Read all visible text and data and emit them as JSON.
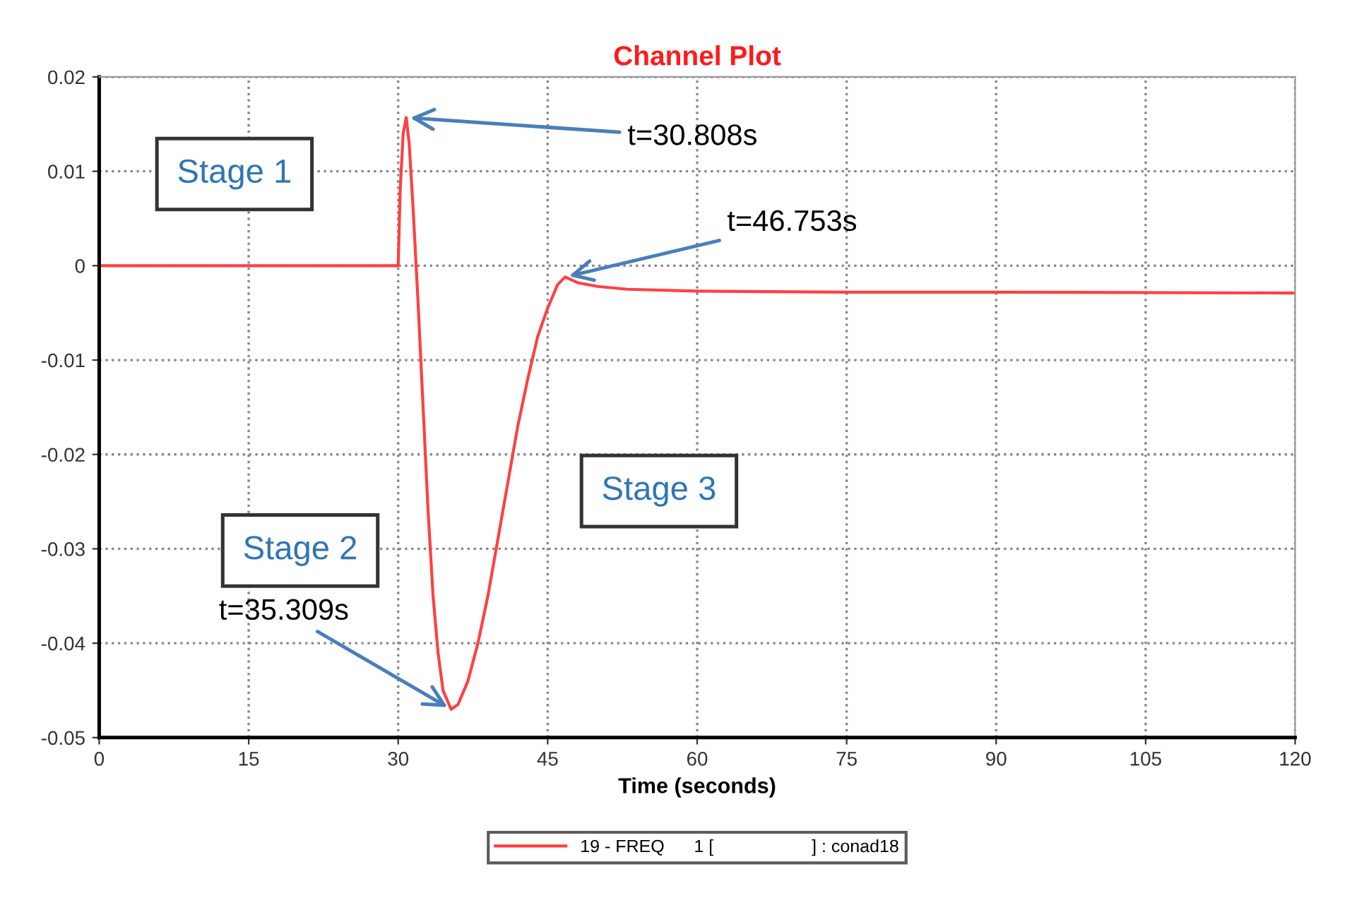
{
  "chart_data": {
    "type": "line",
    "title": "Channel Plot",
    "xlabel": "Time (seconds)",
    "xlim": [
      0,
      120
    ],
    "xticks": [
      0,
      15,
      30,
      45,
      60,
      75,
      90,
      105,
      120
    ],
    "ylim": [
      -0.05,
      0.02
    ],
    "yticks": [
      -0.05,
      -0.04,
      -0.03,
      -0.02,
      -0.01,
      0,
      0.01,
      0.02
    ],
    "grid": true,
    "legend": "bottom",
    "marker": "none",
    "line_style": "solid",
    "series": [
      {
        "name": "19 - FREQ      1 [                    ] : conad18",
        "color": "#ff4040",
        "x": [
          0,
          30,
          30.2,
          30.5,
          30.808,
          31.1,
          31.5,
          32,
          32.5,
          33,
          33.5,
          34,
          34.5,
          35.309,
          36,
          37,
          38,
          39,
          40,
          41,
          42,
          43,
          44,
          45,
          46,
          46.753,
          48,
          50,
          53,
          60,
          75,
          90,
          120
        ],
        "values": [
          0,
          0,
          0.008,
          0.014,
          0.0157,
          0.013,
          0.006,
          -0.004,
          -0.015,
          -0.026,
          -0.035,
          -0.041,
          -0.045,
          -0.047,
          -0.0465,
          -0.044,
          -0.04,
          -0.035,
          -0.029,
          -0.023,
          -0.017,
          -0.012,
          -0.0075,
          -0.0045,
          -0.002,
          -0.0012,
          -0.0018,
          -0.0022,
          -0.0025,
          -0.0027,
          -0.0028,
          -0.0028,
          -0.0029
        ]
      }
    ],
    "annotations": [
      "Stage 1",
      "Stage 2",
      "Stage 3",
      {
        "text": "t=30.808s",
        "x": 30.808,
        "y": 0.0157
      },
      {
        "text": "t=46.753s",
        "x": 46.753,
        "y": -0.0012
      },
      {
        "text": "t=35.309s",
        "x": 35.309,
        "y": -0.047
      }
    ]
  }
}
